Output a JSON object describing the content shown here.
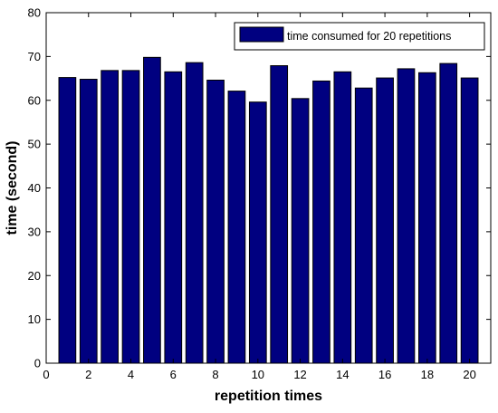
{
  "chart_data": {
    "type": "bar",
    "title": "",
    "xlabel": "repetition times",
    "ylabel": "time (second)",
    "xlim": [
      0,
      21
    ],
    "ylim": [
      0,
      80
    ],
    "xticks": [
      0,
      2,
      4,
      6,
      8,
      10,
      12,
      14,
      16,
      18,
      20
    ],
    "yticks": [
      0,
      10,
      20,
      30,
      40,
      50,
      60,
      70,
      80
    ],
    "grid": false,
    "legend_position": "top-right",
    "bar_color": "#000080",
    "series": [
      {
        "name": "time consumed for 20 repetitions",
        "x": [
          1,
          2,
          3,
          4,
          5,
          6,
          7,
          8,
          9,
          10,
          11,
          12,
          13,
          14,
          15,
          16,
          17,
          18,
          19,
          20
        ],
        "values": [
          65.2,
          64.8,
          66.8,
          66.8,
          69.8,
          66.5,
          68.6,
          64.6,
          62.1,
          59.6,
          67.9,
          60.4,
          64.4,
          66.5,
          62.8,
          65.1,
          67.2,
          66.3,
          68.4,
          65.1
        ]
      }
    ]
  }
}
